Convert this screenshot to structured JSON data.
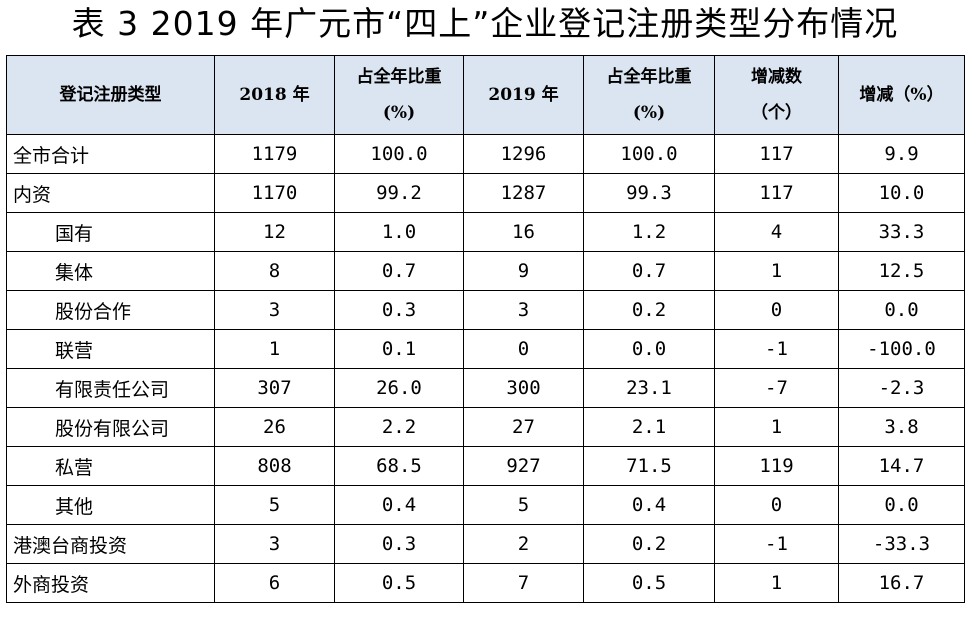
{
  "title": "表 3   2019 年广元市“四上”企业登记注册类型分布情况",
  "columns": {
    "type": "登记注册类型",
    "y2018": "2018 年",
    "share2018_line1": "占全年比重",
    "share2018_line2": "(%)",
    "y2019": "2019 年",
    "share2019_line1": "占全年比重",
    "share2019_line2": "(%)",
    "change_line1": "增减数",
    "change_line2": "（个）",
    "pct": "增减（%）"
  },
  "rows": [
    {
      "name": "全市合计",
      "indent": false,
      "v2018": "1179",
      "s2018": "100.0",
      "v2019": "1296",
      "s2019": "100.0",
      "chg": "117",
      "pct": "9.9"
    },
    {
      "name": "内资",
      "indent": false,
      "v2018": "1170",
      "s2018": "99.2",
      "v2019": "1287",
      "s2019": "99.3",
      "chg": "117",
      "pct": "10.0"
    },
    {
      "name": "国有",
      "indent": true,
      "v2018": "12",
      "s2018": "1.0",
      "v2019": "16",
      "s2019": "1.2",
      "chg": "4",
      "pct": "33.3"
    },
    {
      "name": "集体",
      "indent": true,
      "v2018": "8",
      "s2018": "0.7",
      "v2019": "9",
      "s2019": "0.7",
      "chg": "1",
      "pct": "12.5"
    },
    {
      "name": "股份合作",
      "indent": true,
      "v2018": "3",
      "s2018": "0.3",
      "v2019": "3",
      "s2019": "0.2",
      "chg": "0",
      "pct": "0.0"
    },
    {
      "name": "联营",
      "indent": true,
      "v2018": "1",
      "s2018": "0.1",
      "v2019": "0",
      "s2019": "0.0",
      "chg": "-1",
      "pct": "-100.0"
    },
    {
      "name": "有限责任公司",
      "indent": true,
      "v2018": "307",
      "s2018": "26.0",
      "v2019": "300",
      "s2019": "23.1",
      "chg": "-7",
      "pct": "-2.3"
    },
    {
      "name": "股份有限公司",
      "indent": true,
      "v2018": "26",
      "s2018": "2.2",
      "v2019": "27",
      "s2019": "2.1",
      "chg": "1",
      "pct": "3.8"
    },
    {
      "name": "私营",
      "indent": true,
      "v2018": "808",
      "s2018": "68.5",
      "v2019": "927",
      "s2019": "71.5",
      "chg": "119",
      "pct": "14.7"
    },
    {
      "name": "其他",
      "indent": true,
      "v2018": "5",
      "s2018": "0.4",
      "v2019": "5",
      "s2019": "0.4",
      "chg": "0",
      "pct": "0.0"
    },
    {
      "name": "港澳台商投资",
      "indent": false,
      "v2018": "3",
      "s2018": "0.3",
      "v2019": "2",
      "s2019": "0.2",
      "chg": "-1",
      "pct": "-33.3"
    },
    {
      "name": "外商投资",
      "indent": false,
      "v2018": "6",
      "s2018": "0.5",
      "v2019": "7",
      "s2019": "0.5",
      "chg": "1",
      "pct": "16.7"
    }
  ],
  "colors": {
    "header_bg": "#dbe5f1",
    "border": "#000000"
  }
}
